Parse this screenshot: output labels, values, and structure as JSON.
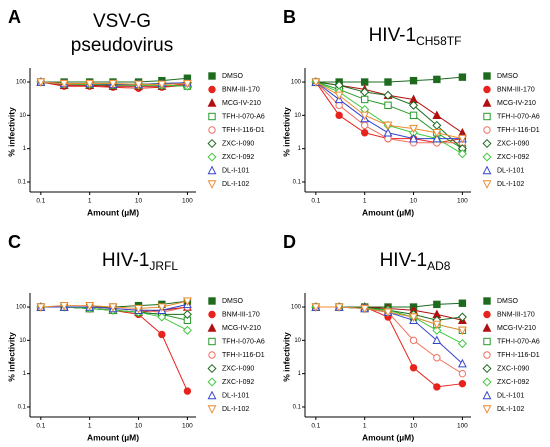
{
  "chart_data": [
    {
      "type": "line",
      "label": "A",
      "title": "VSV-G",
      "subtitle": "pseudovirus",
      "x_label": "Amount (µM)",
      "y_label": "% infectivity",
      "log_x": true,
      "log_y": true,
      "x": [
        0.1,
        0.3,
        1,
        3,
        10,
        30,
        100
      ],
      "xlim": [
        0.06,
        150
      ],
      "xticks": [
        0.1,
        1,
        10,
        100
      ],
      "ylim": [
        0.05,
        200
      ],
      "yticks": [
        0.1,
        1,
        10,
        100
      ],
      "series": [
        {
          "name": "DMSO",
          "color": "#1e6b1e",
          "marker": "square",
          "filled": true,
          "values": [
            100,
            100,
            100,
            100,
            100,
            110,
            130
          ]
        },
        {
          "name": "BNM-III-170",
          "color": "#e8221c",
          "marker": "circle",
          "filled": true,
          "values": [
            100,
            75,
            75,
            70,
            65,
            70,
            80
          ]
        },
        {
          "name": "MCG-IV-210",
          "color": "#b01010",
          "marker": "triangle",
          "filled": true,
          "values": [
            100,
            80,
            80,
            75,
            75,
            75,
            85
          ]
        },
        {
          "name": "TFH-I-070-A6",
          "color": "#2a9a2a",
          "marker": "square",
          "filled": false,
          "values": [
            100,
            85,
            85,
            80,
            80,
            80,
            75
          ]
        },
        {
          "name": "TFH-I-116-D1",
          "color": "#f07060",
          "marker": "circle",
          "filled": false,
          "values": [
            100,
            85,
            90,
            85,
            80,
            85,
            90
          ]
        },
        {
          "name": "ZXC-I-090",
          "color": "#1e6b1e",
          "marker": "diamond",
          "filled": false,
          "values": [
            100,
            90,
            90,
            85,
            85,
            90,
            95
          ]
        },
        {
          "name": "ZXC-I-092",
          "color": "#40c840",
          "marker": "diamond",
          "filled": false,
          "values": [
            100,
            90,
            85,
            85,
            80,
            80,
            75
          ]
        },
        {
          "name": "DL-I-101",
          "color": "#3344cc",
          "marker": "triangle",
          "filled": false,
          "values": [
            100,
            90,
            90,
            85,
            85,
            90,
            95
          ]
        },
        {
          "name": "DL-I-102",
          "color": "#f08a30",
          "marker": "triangle-down",
          "filled": false,
          "values": [
            100,
            90,
            90,
            90,
            85,
            85,
            90
          ]
        }
      ]
    },
    {
      "type": "line",
      "label": "B",
      "title": "HIV-1",
      "title_subscript": "CH58TF",
      "x_label": "Amount (µM)",
      "y_label": "% infectivity",
      "log_x": true,
      "log_y": true,
      "x": [
        0.1,
        0.3,
        1,
        3,
        10,
        30,
        100
      ],
      "xlim": [
        0.06,
        150
      ],
      "xticks": [
        0.1,
        1,
        10,
        100
      ],
      "ylim": [
        0.05,
        200
      ],
      "yticks": [
        0.1,
        1,
        10,
        100
      ],
      "series": [
        {
          "name": "DMSO",
          "color": "#1e6b1e",
          "marker": "square",
          "filled": true,
          "values": [
            100,
            100,
            100,
            100,
            110,
            120,
            140
          ]
        },
        {
          "name": "BNM-III-170",
          "color": "#e8221c",
          "marker": "circle",
          "filled": true,
          "values": [
            100,
            10,
            3,
            2,
            2,
            1.5,
            2
          ]
        },
        {
          "name": "MCG-IV-210",
          "color": "#b01010",
          "marker": "triangle",
          "filled": true,
          "values": [
            100,
            80,
            60,
            40,
            30,
            10,
            3
          ]
        },
        {
          "name": "TFH-I-070-A6",
          "color": "#2a9a2a",
          "marker": "square",
          "filled": false,
          "values": [
            100,
            60,
            30,
            20,
            10,
            3,
            1
          ]
        },
        {
          "name": "TFH-I-116-D1",
          "color": "#f07060",
          "marker": "circle",
          "filled": false,
          "values": [
            100,
            20,
            5,
            2,
            1.5,
            1.5,
            1.5
          ]
        },
        {
          "name": "ZXC-I-090",
          "color": "#1e6b1e",
          "marker": "diamond",
          "filled": false,
          "values": [
            100,
            80,
            50,
            40,
            20,
            5,
            1
          ]
        },
        {
          "name": "ZXC-I-092",
          "color": "#40c840",
          "marker": "diamond",
          "filled": false,
          "values": [
            100,
            50,
            15,
            5,
            3,
            2,
            0.7
          ]
        },
        {
          "name": "DL-I-101",
          "color": "#3344cc",
          "marker": "triangle",
          "filled": false,
          "values": [
            100,
            30,
            8,
            3,
            2,
            2,
            2
          ]
        },
        {
          "name": "DL-I-102",
          "color": "#f08a30",
          "marker": "triangle-down",
          "filled": false,
          "values": [
            100,
            40,
            10,
            5,
            4,
            3,
            2
          ]
        }
      ]
    },
    {
      "type": "line",
      "label": "C",
      "title": "HIV-1",
      "title_subscript": "JRFL",
      "x_label": "Amount (µM)",
      "y_label": "% infectivity",
      "log_x": true,
      "log_y": true,
      "x": [
        0.1,
        0.3,
        1,
        3,
        10,
        30,
        100
      ],
      "xlim": [
        0.06,
        150
      ],
      "xticks": [
        0.1,
        1,
        10,
        100
      ],
      "ylim": [
        0.05,
        200
      ],
      "yticks": [
        0.1,
        1,
        10,
        100
      ],
      "series": [
        {
          "name": "DMSO",
          "color": "#1e6b1e",
          "marker": "square",
          "filled": true,
          "values": [
            100,
            100,
            100,
            100,
            110,
            120,
            150
          ]
        },
        {
          "name": "BNM-III-170",
          "color": "#e8221c",
          "marker": "circle",
          "filled": true,
          "values": [
            100,
            100,
            90,
            80,
            60,
            15,
            0.3
          ]
        },
        {
          "name": "MCG-IV-210",
          "color": "#b01010",
          "marker": "triangle",
          "filled": true,
          "values": [
            100,
            100,
            90,
            80,
            70,
            80,
            100
          ]
        },
        {
          "name": "TFH-I-070-A6",
          "color": "#2a9a2a",
          "marker": "square",
          "filled": false,
          "values": [
            100,
            100,
            90,
            80,
            70,
            60,
            40
          ]
        },
        {
          "name": "TFH-I-116-D1",
          "color": "#f07060",
          "marker": "circle",
          "filled": false,
          "values": [
            100,
            100,
            100,
            90,
            80,
            70,
            100
          ]
        },
        {
          "name": "ZXC-I-090",
          "color": "#1e6b1e",
          "marker": "diamond",
          "filled": false,
          "values": [
            100,
            100,
            90,
            80,
            70,
            60,
            60
          ]
        },
        {
          "name": "ZXC-I-092",
          "color": "#40c840",
          "marker": "diamond",
          "filled": false,
          "values": [
            100,
            100,
            90,
            80,
            70,
            50,
            20
          ]
        },
        {
          "name": "DL-I-101",
          "color": "#3344cc",
          "marker": "triangle",
          "filled": false,
          "values": [
            100,
            100,
            100,
            90,
            80,
            80,
            120
          ]
        },
        {
          "name": "DL-I-102",
          "color": "#f08a30",
          "marker": "triangle-down",
          "filled": false,
          "values": [
            100,
            110,
            110,
            100,
            90,
            100,
            150
          ]
        }
      ]
    },
    {
      "type": "line",
      "label": "D",
      "title": "HIV-1",
      "title_subscript": "AD8",
      "x_label": "Amount (µM)",
      "y_label": "% infectivity",
      "log_x": true,
      "log_y": true,
      "x": [
        0.1,
        0.3,
        1,
        3,
        10,
        30,
        100
      ],
      "xlim": [
        0.06,
        150
      ],
      "xticks": [
        0.1,
        1,
        10,
        100
      ],
      "ylim": [
        0.05,
        200
      ],
      "yticks": [
        0.1,
        1,
        10,
        100
      ],
      "series": [
        {
          "name": "DMSO",
          "color": "#1e6b1e",
          "marker": "square",
          "filled": true,
          "values": [
            100,
            100,
            100,
            100,
            100,
            120,
            130
          ]
        },
        {
          "name": "BNM-III-170",
          "color": "#e8221c",
          "marker": "circle",
          "filled": true,
          "values": [
            100,
            100,
            100,
            50,
            1.5,
            0.4,
            0.5
          ]
        },
        {
          "name": "MCG-IV-210",
          "color": "#b01010",
          "marker": "triangle",
          "filled": true,
          "values": [
            100,
            100,
            100,
            90,
            80,
            60,
            40
          ]
        },
        {
          "name": "TFH-I-070-A6",
          "color": "#2a9a2a",
          "marker": "square",
          "filled": false,
          "values": [
            100,
            100,
            90,
            70,
            50,
            30,
            20
          ]
        },
        {
          "name": "TFH-I-116-D1",
          "color": "#f07060",
          "marker": "circle",
          "filled": false,
          "values": [
            100,
            100,
            100,
            70,
            10,
            3,
            1
          ]
        },
        {
          "name": "ZXC-I-090",
          "color": "#1e6b1e",
          "marker": "diamond",
          "filled": false,
          "values": [
            100,
            100,
            100,
            80,
            60,
            40,
            50
          ]
        },
        {
          "name": "ZXC-I-092",
          "color": "#40c840",
          "marker": "diamond",
          "filled": false,
          "values": [
            100,
            100,
            90,
            80,
            50,
            20,
            8
          ]
        },
        {
          "name": "DL-I-101",
          "color": "#3344cc",
          "marker": "triangle",
          "filled": false,
          "values": [
            100,
            100,
            90,
            70,
            40,
            10,
            2
          ]
        },
        {
          "name": "DL-I-102",
          "color": "#f08a30",
          "marker": "triangle-down",
          "filled": false,
          "values": [
            100,
            100,
            90,
            70,
            50,
            30,
            20
          ]
        }
      ]
    }
  ]
}
